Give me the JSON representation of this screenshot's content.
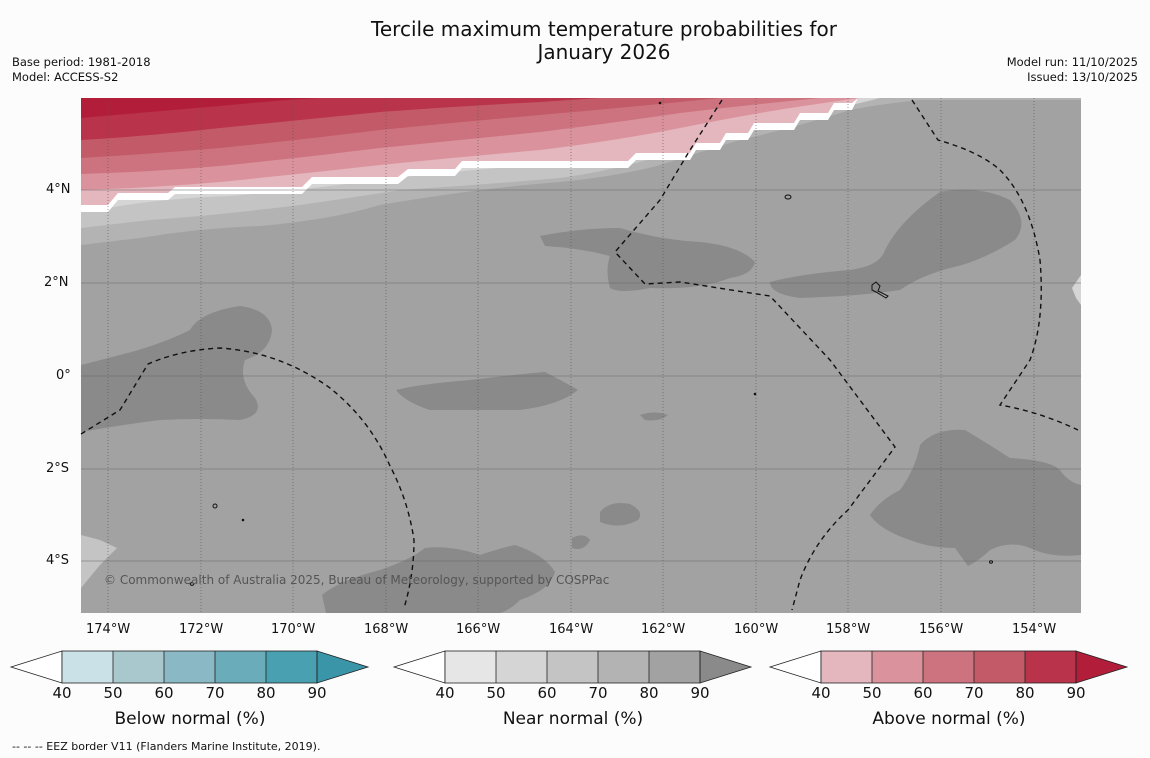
{
  "title_line1": "Tercile maximum temperature probabilities for",
  "title_line2": "January 2026",
  "base_period": "Base period: 1981-2018",
  "model": "Model: ACCESS-S2",
  "model_run": "Model run: 11/10/2025",
  "issued": "Issued: 13/10/2025",
  "credit": "© Commonwealth of Australia 2025, Bureau of Meteorology, supported by COSPPac",
  "footer": "--  --  -- EEZ border V11 (Flanders Marine Institute, 2019).",
  "lon_labels": [
    "174°W",
    "172°W",
    "170°W",
    "168°W",
    "166°W",
    "164°W",
    "162°W",
    "160°W",
    "158°W",
    "156°W",
    "154°W"
  ],
  "lat_labels": [
    "4°N",
    "2°N",
    "0°",
    "2°S",
    "4°S"
  ],
  "colorbars": [
    {
      "label": "Below normal (%)",
      "ticks": [
        "40",
        "50",
        "60",
        "70",
        "80",
        "90"
      ],
      "colors": [
        "#ffffff",
        "#c9e1e7",
        "#a8c8cd",
        "#8ab8c4",
        "#6aacba",
        "#48a0b0",
        "#3b95a8"
      ]
    },
    {
      "label": "Near normal (%)",
      "ticks": [
        "40",
        "50",
        "60",
        "70",
        "80",
        "90"
      ],
      "colors": [
        "#ffffff",
        "#e6e6e6",
        "#d5d5d5",
        "#c4c4c4",
        "#b3b3b3",
        "#a2a2a2",
        "#8a8a8a"
      ]
    },
    {
      "label": "Above normal (%)",
      "ticks": [
        "40",
        "50",
        "60",
        "70",
        "80",
        "90"
      ],
      "colors": [
        "#ffffff",
        "#e4b6bd",
        "#da939c",
        "#cd737f",
        "#c35a68",
        "#b9334a",
        "#b21e3a"
      ]
    }
  ]
}
